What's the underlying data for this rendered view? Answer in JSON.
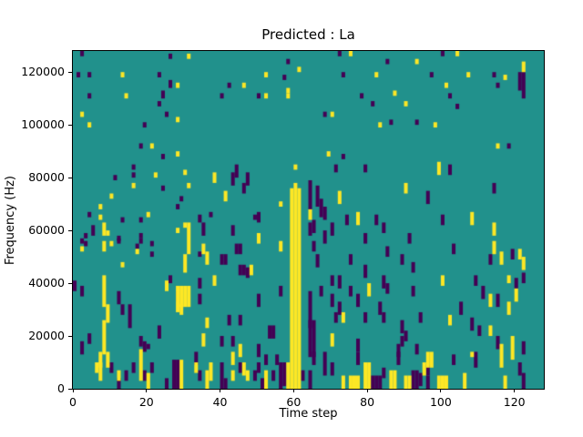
{
  "chart_data": {
    "type": "heatmap",
    "title": "Predicted : La",
    "xlabel": "Time step",
    "ylabel": "Frequency (Hz)",
    "x_range": [
      0,
      128
    ],
    "y_range": [
      0,
      128000
    ],
    "grid_size": [
      128,
      128
    ],
    "colormap": "viridis-3-level",
    "legend": "none",
    "grid": "off",
    "colors": {
      "low": "#440154",
      "mid": "#21918c",
      "high": "#fde725"
    },
    "x_ticks": {
      "values": [
        0,
        20,
        40,
        60,
        80,
        100,
        120
      ],
      "labels": [
        "0",
        "20",
        "40",
        "60",
        "80",
        "100",
        "120"
      ]
    },
    "y_ticks": {
      "values": [
        0,
        20000,
        40000,
        60000,
        80000,
        100000,
        120000
      ],
      "labels": [
        "0",
        "20000",
        "40000",
        "60000",
        "80000",
        "100000",
        "120000"
      ]
    },
    "cells_note": "runs are [time_bin, freq_bin_low, freq_bin_high] inclusive; 1 freq bin = 1000 Hz; all other cells are mid value",
    "cells_yellow": [
      [
        31,
        125,
        126
      ],
      [
        13,
        118,
        119
      ],
      [
        28,
        114,
        115
      ],
      [
        14,
        110,
        111
      ],
      [
        2,
        103,
        104
      ],
      [
        28,
        101,
        102
      ],
      [
        4,
        99,
        100
      ],
      [
        21,
        91,
        92
      ],
      [
        28,
        88,
        89
      ],
      [
        61,
        120,
        121
      ],
      [
        52,
        118,
        119
      ],
      [
        46,
        114,
        115
      ],
      [
        58,
        112,
        113
      ],
      [
        52,
        110,
        111
      ],
      [
        58,
        110,
        111
      ],
      [
        75,
        126,
        127
      ],
      [
        93,
        123,
        124
      ],
      [
        82,
        118,
        119
      ],
      [
        87,
        111,
        112
      ],
      [
        90,
        107,
        108
      ],
      [
        70,
        103,
        104
      ],
      [
        83,
        99,
        100
      ],
      [
        69,
        88,
        89
      ],
      [
        104,
        126,
        127
      ],
      [
        122,
        120,
        123
      ],
      [
        107,
        118,
        119
      ],
      [
        117,
        117,
        118
      ],
      [
        101,
        114,
        115
      ],
      [
        98,
        99,
        100
      ],
      [
        115,
        91,
        92
      ],
      [
        22,
        80,
        81
      ],
      [
        30,
        81,
        82
      ],
      [
        16,
        76,
        77
      ],
      [
        31,
        76,
        77
      ],
      [
        10,
        72,
        73
      ],
      [
        7,
        68,
        69
      ],
      [
        7,
        64,
        65
      ],
      [
        20,
        65,
        66
      ],
      [
        8,
        58,
        62
      ],
      [
        9,
        58,
        59
      ],
      [
        30,
        61,
        62
      ],
      [
        28,
        59,
        60
      ],
      [
        8,
        52,
        55
      ],
      [
        10,
        54,
        55
      ],
      [
        2,
        52,
        53
      ],
      [
        17,
        51,
        52
      ],
      [
        13,
        46,
        47
      ],
      [
        30,
        44,
        50
      ],
      [
        31,
        51,
        62
      ],
      [
        38,
        78,
        81
      ],
      [
        41,
        71,
        74
      ],
      [
        50,
        55,
        58
      ],
      [
        35,
        51,
        54
      ],
      [
        36,
        47,
        51
      ],
      [
        48,
        43,
        46
      ],
      [
        56,
        69,
        70
      ],
      [
        56,
        52,
        55
      ],
      [
        58,
        0,
        9
      ],
      [
        59,
        0,
        75
      ],
      [
        60,
        0,
        77
      ],
      [
        61,
        0,
        75
      ],
      [
        60,
        83,
        84
      ],
      [
        64,
        64,
        67
      ],
      [
        72,
        70,
        74
      ],
      [
        90,
        74,
        77
      ],
      [
        77,
        62,
        66
      ],
      [
        99,
        81,
        85
      ],
      [
        108,
        62,
        66
      ],
      [
        114,
        58,
        62
      ],
      [
        114,
        51,
        55
      ],
      [
        116,
        47,
        51
      ],
      [
        121,
        49,
        52
      ],
      [
        122,
        45,
        49
      ],
      [
        8,
        31,
        42
      ],
      [
        9,
        25,
        31
      ],
      [
        8,
        13,
        25
      ],
      [
        7,
        8,
        13
      ],
      [
        9,
        8,
        13
      ],
      [
        7,
        3,
        9
      ],
      [
        6,
        6,
        9
      ],
      [
        12,
        3,
        6
      ],
      [
        18,
        3,
        14
      ],
      [
        20,
        0,
        5
      ],
      [
        25,
        37,
        40
      ],
      [
        28,
        29,
        38
      ],
      [
        29,
        31,
        38
      ],
      [
        30,
        31,
        38
      ],
      [
        31,
        31,
        38
      ],
      [
        29,
        28,
        31
      ],
      [
        29,
        0,
        10
      ],
      [
        33,
        6,
        9
      ],
      [
        38,
        39,
        42
      ],
      [
        36,
        23,
        26
      ],
      [
        35,
        16,
        20
      ],
      [
        45,
        12,
        16
      ],
      [
        43,
        9,
        13
      ],
      [
        43,
        3,
        6
      ],
      [
        37,
        3,
        9
      ],
      [
        36,
        0,
        6
      ],
      [
        46,
        5,
        9
      ],
      [
        47,
        3,
        6
      ],
      [
        52,
        0,
        6
      ],
      [
        80,
        35,
        39
      ],
      [
        73,
        25,
        28
      ],
      [
        70,
        16,
        20
      ],
      [
        79,
        0,
        9
      ],
      [
        80,
        0,
        9
      ],
      [
        73,
        0,
        4
      ],
      [
        75,
        0,
        4
      ],
      [
        76,
        0,
        4
      ],
      [
        77,
        0,
        4
      ],
      [
        86,
        0,
        6
      ],
      [
        87,
        0,
        6
      ],
      [
        90,
        0,
        4
      ],
      [
        91,
        0,
        4
      ],
      [
        95,
        5,
        9
      ],
      [
        100,
        39,
        42
      ],
      [
        118,
        40,
        42
      ],
      [
        120,
        33,
        37
      ],
      [
        113,
        31,
        35
      ],
      [
        118,
        28,
        32
      ],
      [
        102,
        24,
        27
      ],
      [
        113,
        20,
        23
      ],
      [
        119,
        11,
        19
      ],
      [
        116,
        8,
        16
      ],
      [
        108,
        12,
        13
      ],
      [
        96,
        8,
        13
      ],
      [
        97,
        8,
        13
      ],
      [
        99,
        0,
        4
      ],
      [
        100,
        0,
        4
      ],
      [
        101,
        0,
        4
      ],
      [
        106,
        0,
        5
      ],
      [
        117,
        0,
        4
      ]
    ],
    "cells_purple": [
      [
        2,
        126,
        127
      ],
      [
        26,
        125,
        126
      ],
      [
        1,
        118,
        119
      ],
      [
        4,
        118,
        119
      ],
      [
        23,
        118,
        119
      ],
      [
        26,
        114,
        116
      ],
      [
        4,
        110,
        111
      ],
      [
        24,
        110,
        112
      ],
      [
        23,
        107,
        108
      ],
      [
        25,
        103,
        104
      ],
      [
        19,
        99,
        100
      ],
      [
        18,
        91,
        92
      ],
      [
        24,
        87,
        88
      ],
      [
        58,
        123,
        124
      ],
      [
        57,
        117,
        118
      ],
      [
        42,
        114,
        115
      ],
      [
        40,
        110,
        111
      ],
      [
        50,
        110,
        111
      ],
      [
        72,
        126,
        127
      ],
      [
        85,
        123,
        124
      ],
      [
        73,
        118,
        119
      ],
      [
        78,
        110,
        111
      ],
      [
        81,
        107,
        108
      ],
      [
        68,
        103,
        104
      ],
      [
        86,
        100,
        101
      ],
      [
        93,
        100,
        101
      ],
      [
        73,
        87,
        88
      ],
      [
        100,
        126,
        127
      ],
      [
        97,
        118,
        119
      ],
      [
        114,
        118,
        119
      ],
      [
        122,
        110,
        119
      ],
      [
        121,
        113,
        119
      ],
      [
        115,
        114,
        115
      ],
      [
        102,
        110,
        111
      ],
      [
        104,
        106,
        107
      ],
      [
        118,
        91,
        92
      ],
      [
        16,
        83,
        84
      ],
      [
        11,
        79,
        80
      ],
      [
        16,
        80,
        81
      ],
      [
        24,
        75,
        76
      ],
      [
        29,
        71,
        72
      ],
      [
        28,
        68,
        69
      ],
      [
        4,
        65,
        66
      ],
      [
        13,
        63,
        64
      ],
      [
        18,
        63,
        64
      ],
      [
        5,
        58,
        61
      ],
      [
        12,
        56,
        57
      ],
      [
        3,
        57,
        58
      ],
      [
        18,
        57,
        58
      ],
      [
        12,
        55,
        56
      ],
      [
        18,
        55,
        56
      ],
      [
        3,
        54,
        55
      ],
      [
        17,
        53,
        54
      ],
      [
        21,
        54,
        55
      ],
      [
        21,
        50,
        51
      ],
      [
        2,
        55,
        56
      ],
      [
        44,
        80,
        84
      ],
      [
        43,
        77,
        81
      ],
      [
        47,
        77,
        81
      ],
      [
        46,
        74,
        77
      ],
      [
        50,
        63,
        66
      ],
      [
        34,
        63,
        65
      ],
      [
        37,
        65,
        66
      ],
      [
        35,
        58,
        62
      ],
      [
        43,
        58,
        61
      ],
      [
        49,
        64,
        65
      ],
      [
        44,
        51,
        54
      ],
      [
        45,
        51,
        54
      ],
      [
        34,
        50,
        51
      ],
      [
        40,
        47,
        50
      ],
      [
        41,
        47,
        50
      ],
      [
        45,
        43,
        46
      ],
      [
        46,
        43,
        46
      ],
      [
        47,
        42,
        45
      ],
      [
        56,
        35,
        38
      ],
      [
        56,
        0,
        9
      ],
      [
        57,
        1,
        9
      ],
      [
        71,
        82,
        84
      ],
      [
        79,
        82,
        84
      ],
      [
        64,
        68,
        78
      ],
      [
        64,
        58,
        62
      ],
      [
        66,
        69,
        76
      ],
      [
        67,
        65,
        71
      ],
      [
        68,
        64,
        68
      ],
      [
        65,
        59,
        63
      ],
      [
        74,
        62,
        65
      ],
      [
        82,
        62,
        65
      ],
      [
        84,
        59,
        62
      ],
      [
        70,
        58,
        62
      ],
      [
        68,
        55,
        59
      ],
      [
        65,
        52,
        55
      ],
      [
        79,
        55,
        58
      ],
      [
        91,
        55,
        58
      ],
      [
        85,
        50,
        53
      ],
      [
        75,
        47,
        50
      ],
      [
        89,
        47,
        50
      ],
      [
        66,
        46,
        50
      ],
      [
        79,
        42,
        46
      ],
      [
        92,
        44,
        47
      ],
      [
        102,
        81,
        84
      ],
      [
        114,
        74,
        77
      ],
      [
        96,
        70,
        74
      ],
      [
        100,
        62,
        65
      ],
      [
        103,
        51,
        54
      ],
      [
        113,
        47,
        50
      ],
      [
        119,
        49,
        52
      ],
      [
        2,
        35,
        38
      ],
      [
        12,
        32,
        36
      ],
      [
        13,
        28,
        31
      ],
      [
        15,
        23,
        31
      ],
      [
        18,
        16,
        19
      ],
      [
        19,
        14,
        17
      ],
      [
        4,
        17,
        20
      ],
      [
        2,
        13,
        17
      ],
      [
        26,
        40,
        42
      ],
      [
        28,
        33,
        36
      ],
      [
        23,
        19,
        23
      ],
      [
        20,
        15,
        16
      ],
      [
        16,
        6,
        9
      ],
      [
        27,
        0,
        10
      ],
      [
        28,
        0,
        10
      ],
      [
        25,
        0,
        3
      ],
      [
        12,
        0,
        3
      ],
      [
        14,
        3,
        6
      ],
      [
        0,
        37,
        40
      ],
      [
        10,
        6,
        9
      ],
      [
        19,
        3,
        6
      ],
      [
        21,
        6,
        9
      ],
      [
        34,
        38,
        41
      ],
      [
        34,
        32,
        35
      ],
      [
        50,
        31,
        35
      ],
      [
        42,
        24,
        27
      ],
      [
        45,
        24,
        27
      ],
      [
        53,
        19,
        23
      ],
      [
        54,
        19,
        23
      ],
      [
        40,
        16,
        19
      ],
      [
        43,
        16,
        19
      ],
      [
        50,
        12,
        16
      ],
      [
        33,
        9,
        13
      ],
      [
        52,
        9,
        12
      ],
      [
        55,
        9,
        12
      ],
      [
        40,
        0,
        9
      ],
      [
        41,
        0,
        3
      ],
      [
        34,
        3,
        6
      ],
      [
        45,
        6,
        9
      ],
      [
        49,
        3,
        6
      ],
      [
        50,
        6,
        9
      ],
      [
        51,
        0,
        3
      ],
      [
        54,
        3,
        6
      ],
      [
        62,
        3,
        6
      ],
      [
        70,
        39,
        42
      ],
      [
        72,
        38,
        42
      ],
      [
        84,
        38,
        42
      ],
      [
        67,
        35,
        38
      ],
      [
        75,
        35,
        38
      ],
      [
        85,
        36,
        39
      ],
      [
        92,
        35,
        38
      ],
      [
        64,
        23,
        36
      ],
      [
        64,
        12,
        25
      ],
      [
        65,
        12,
        25
      ],
      [
        70,
        31,
        35
      ],
      [
        77,
        31,
        35
      ],
      [
        72,
        28,
        32
      ],
      [
        71,
        25,
        28
      ],
      [
        79,
        25,
        28
      ],
      [
        83,
        28,
        32
      ],
      [
        84,
        25,
        28
      ],
      [
        94,
        25,
        28
      ],
      [
        89,
        21,
        25
      ],
      [
        77,
        14,
        18
      ],
      [
        89,
        16,
        19
      ],
      [
        90,
        18,
        21
      ],
      [
        88,
        12,
        16
      ],
      [
        93,
        13,
        16
      ],
      [
        65,
        9,
        13
      ],
      [
        68,
        5,
        13
      ],
      [
        70,
        5,
        9
      ],
      [
        77,
        9,
        13
      ],
      [
        88,
        9,
        13
      ],
      [
        81,
        0,
        4
      ],
      [
        82,
        0,
        4
      ],
      [
        83,
        0,
        4
      ],
      [
        84,
        4,
        7
      ],
      [
        92,
        0,
        6
      ],
      [
        93,
        0,
        6
      ],
      [
        94,
        1,
        5
      ],
      [
        64,
        0,
        6
      ],
      [
        109,
        39,
        42
      ],
      [
        111,
        34,
        38
      ],
      [
        115,
        31,
        35
      ],
      [
        105,
        28,
        32
      ],
      [
        108,
        22,
        26
      ],
      [
        110,
        20,
        23
      ],
      [
        115,
        15,
        19
      ],
      [
        122,
        13,
        17
      ],
      [
        109,
        8,
        13
      ],
      [
        103,
        9,
        12
      ],
      [
        96,
        5,
        8
      ],
      [
        121,
        5,
        9
      ],
      [
        96,
        0,
        4
      ],
      [
        122,
        0,
        5
      ],
      [
        120,
        38,
        41
      ],
      [
        122,
        40,
        43
      ]
    ]
  }
}
